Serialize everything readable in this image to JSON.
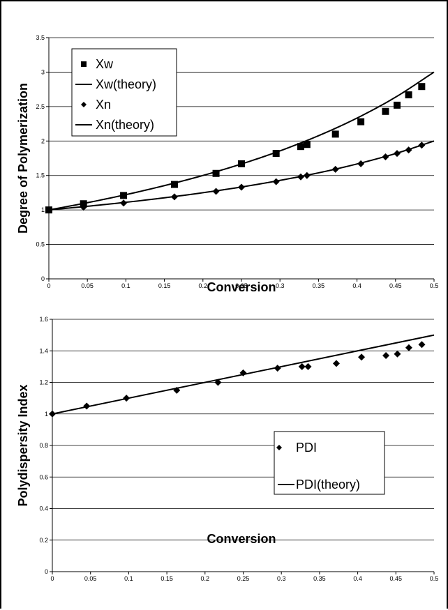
{
  "chart_data": [
    {
      "type": "scatter",
      "xlabel": "Conversion",
      "ylabel": "Degree of Polymerization",
      "xlim": [
        0,
        0.5
      ],
      "ylim": [
        0,
        3.5
      ],
      "xticks": [
        "0",
        "0.05",
        "0.1",
        "0.15",
        "0.2",
        "0.25",
        "0.3",
        "0.35",
        "0.4",
        "0.45",
        "0.5"
      ],
      "yticks": [
        "0",
        "0.5",
        "1",
        "1.5",
        "2",
        "2.5",
        "3",
        "3.5"
      ],
      "grid": "horizontal",
      "legend_position": "top-left",
      "series": [
        {
          "name": "Xw",
          "marker": "square",
          "x": [
            0,
            0.045,
            0.097,
            0.163,
            0.217,
            0.25,
            0.295,
            0.327,
            0.335,
            0.372,
            0.405,
            0.437,
            0.452,
            0.467,
            0.484
          ],
          "y": [
            1.0,
            1.09,
            1.21,
            1.37,
            1.53,
            1.67,
            1.82,
            1.92,
            1.95,
            2.1,
            2.28,
            2.43,
            2.52,
            2.67,
            2.79
          ]
        },
        {
          "name": "Xw(theory)",
          "line": true,
          "x": [
            0,
            0.05,
            0.1,
            0.15,
            0.2,
            0.25,
            0.3,
            0.35,
            0.4,
            0.45,
            0.5
          ],
          "y": [
            1.0,
            1.105,
            1.222,
            1.353,
            1.5,
            1.667,
            1.857,
            2.077,
            2.333,
            2.636,
            3.0
          ]
        },
        {
          "name": "Xn",
          "marker": "diamond",
          "x": [
            0,
            0.045,
            0.097,
            0.163,
            0.217,
            0.25,
            0.295,
            0.327,
            0.335,
            0.372,
            0.405,
            0.437,
            0.452,
            0.467,
            0.484
          ],
          "y": [
            1.0,
            1.04,
            1.1,
            1.19,
            1.27,
            1.33,
            1.41,
            1.48,
            1.5,
            1.59,
            1.67,
            1.77,
            1.82,
            1.87,
            1.94
          ]
        },
        {
          "name": "Xn(theory)",
          "line": true,
          "x": [
            0,
            0.05,
            0.1,
            0.15,
            0.2,
            0.25,
            0.3,
            0.35,
            0.4,
            0.45,
            0.5
          ],
          "y": [
            1.0,
            1.053,
            1.111,
            1.176,
            1.25,
            1.333,
            1.429,
            1.538,
            1.667,
            1.818,
            2.0
          ]
        }
      ]
    },
    {
      "type": "scatter",
      "xlabel": "Conversion",
      "ylabel": "Polydispersity Index",
      "xlim": [
        0,
        0.5
      ],
      "ylim": [
        0,
        1.6
      ],
      "xticks": [
        "0",
        "0.05",
        "0.1",
        "0.15",
        "0.2",
        "0.25",
        "0.3",
        "0.35",
        "0.4",
        "0.45",
        "0.5"
      ],
      "yticks": [
        "0",
        "0.2",
        "0.4",
        "0.6",
        "0.8",
        "1",
        "1.2",
        "1.4",
        "1.6"
      ],
      "grid": "horizontal",
      "legend_position": "center-right",
      "series": [
        {
          "name": "PDI",
          "marker": "diamond",
          "x": [
            0,
            0.045,
            0.097,
            0.163,
            0.217,
            0.25,
            0.295,
            0.327,
            0.335,
            0.372,
            0.405,
            0.437,
            0.452,
            0.467,
            0.484
          ],
          "y": [
            1.0,
            1.05,
            1.1,
            1.15,
            1.2,
            1.26,
            1.29,
            1.3,
            1.3,
            1.32,
            1.36,
            1.37,
            1.38,
            1.42,
            1.44
          ]
        },
        {
          "name": "PDI(theory)",
          "line": true,
          "x": [
            0,
            0.5
          ],
          "y": [
            1.0,
            1.5
          ]
        }
      ]
    }
  ]
}
